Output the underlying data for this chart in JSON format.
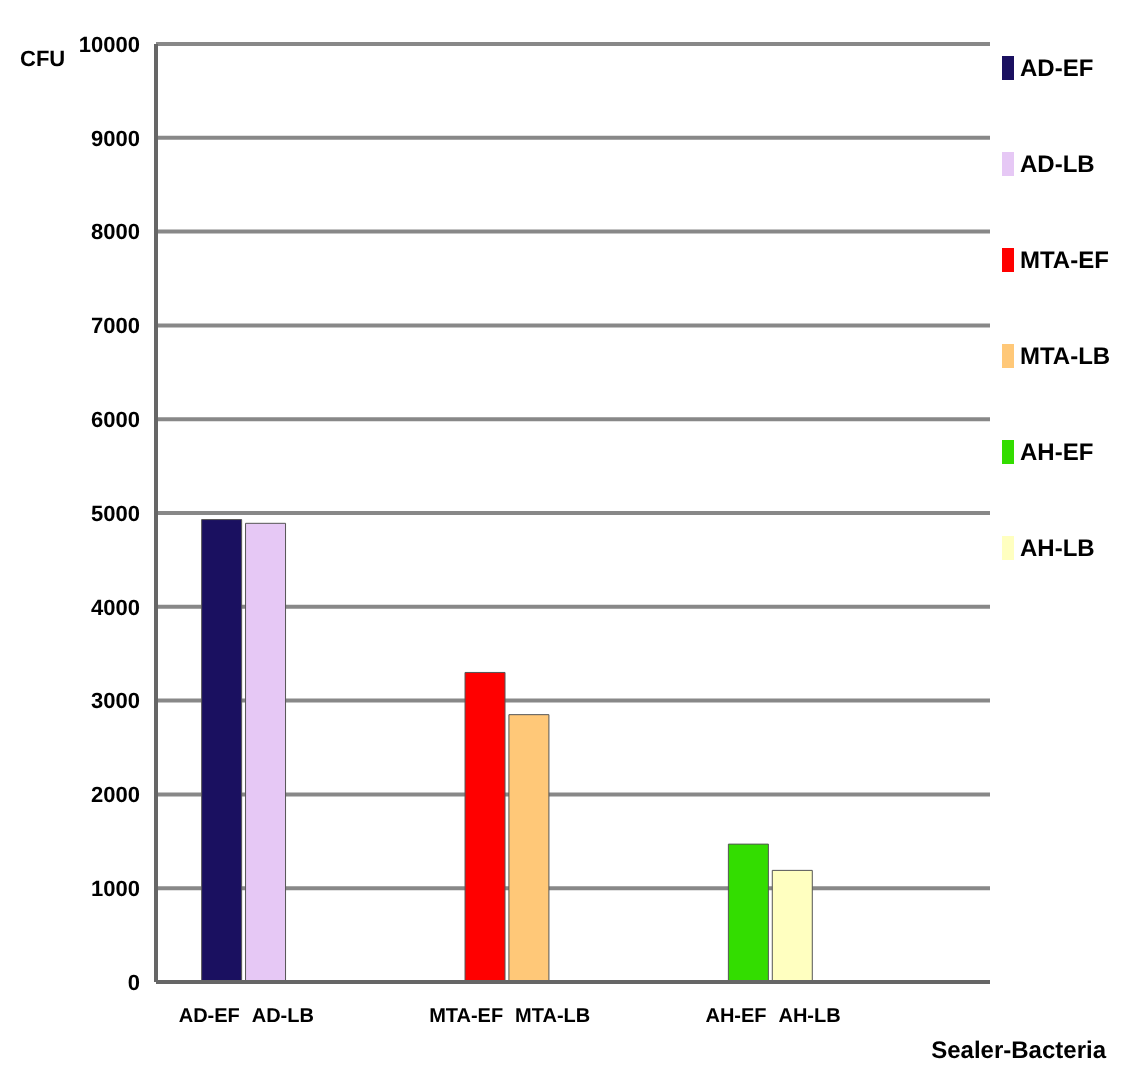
{
  "chart_data": {
    "type": "bar",
    "xlabel": "Sealer-Bacteria",
    "ylabel": "CFU",
    "categories": [
      null,
      "AD-EF",
      "AD-LB",
      null,
      null,
      null,
      null,
      "MTA-EF",
      "MTA-LB",
      null,
      null,
      null,
      null,
      "AH-EF",
      "AH-LB",
      null,
      null,
      null,
      null
    ],
    "stacked": true,
    "series": [
      {
        "name": "AD-EF",
        "color": "#1a1060",
        "values": [
          null,
          4930,
          null,
          null,
          null,
          null,
          null,
          null,
          null,
          null,
          null,
          null,
          null,
          null,
          null,
          null,
          null,
          null,
          null
        ]
      },
      {
        "name": "AD-LB",
        "color": "#e6c8f5",
        "values": [
          null,
          null,
          4890,
          null,
          null,
          null,
          null,
          null,
          null,
          null,
          null,
          null,
          null,
          null,
          null,
          null,
          null,
          null,
          null
        ]
      },
      {
        "name": "MTA-EF",
        "color": "#ff0000",
        "values": [
          null,
          null,
          null,
          null,
          null,
          null,
          null,
          3300,
          null,
          null,
          null,
          null,
          null,
          null,
          null,
          null,
          null,
          null,
          null
        ]
      },
      {
        "name": "MTA-LB",
        "color": "#ffc878",
        "values": [
          null,
          null,
          null,
          null,
          null,
          null,
          null,
          null,
          2850,
          null,
          null,
          null,
          null,
          null,
          null,
          null,
          null,
          null,
          null
        ]
      },
      {
        "name": "AH-EF",
        "color": "#33dd00",
        "values": [
          null,
          null,
          null,
          null,
          null,
          null,
          null,
          null,
          null,
          null,
          null,
          null,
          null,
          1470,
          null,
          null,
          null,
          null,
          null
        ]
      },
      {
        "name": "AH-LB",
        "color": "#ffffc0",
        "values": [
          null,
          null,
          null,
          null,
          null,
          null,
          null,
          null,
          null,
          null,
          null,
          null,
          null,
          null,
          1190,
          null,
          null,
          null,
          null
        ]
      }
    ],
    "ylim": [
      0,
      10000
    ],
    "yticks": [
      0,
      1000,
      2000,
      3000,
      4000,
      5000,
      6000,
      7000,
      8000,
      9000,
      10000
    ],
    "grid": "y",
    "legend": "right"
  }
}
